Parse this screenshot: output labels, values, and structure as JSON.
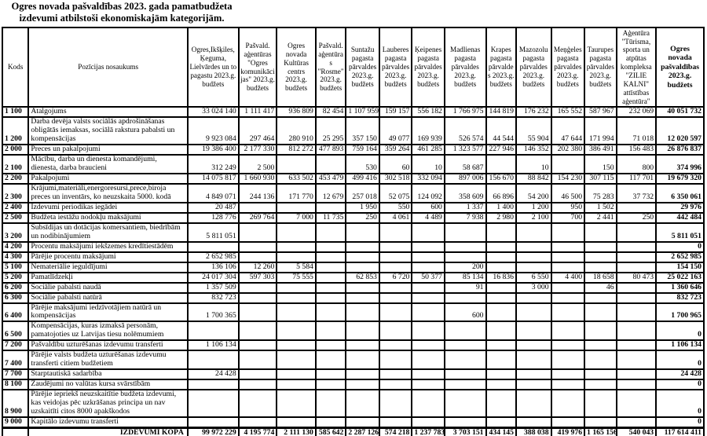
{
  "title": "Ogres novada pašvaldības 2023. gada pamatbudžeta izdevumi atbilstoši ekonomiskajām kategorijām.",
  "table": {
    "columns": [
      "Kods",
      "Pozīcijas nosaukums",
      "Ogres,Ikšķiles, Ķeguma, Lielvārdes un to pagastu 2023.g. budžets",
      "Pašvald. aģentūras \"Ogres komunikācijas\" 2023.g. budžets",
      "Ogres novada Kultūras centrs 2023.g. budžets",
      "Pašvald. aģentūras \"Rosme\" 2023.g. budžets",
      "Suntažu pagasta pārvaldes 2023.g. budžets",
      "Lauberes pagasta pārvaldes 2023.g. budžets",
      "Ķeipenes pagasta pārvaldes 2023.g. budžets",
      "Madlienas pagasta pārvaldes 2023.g. budžets",
      "Krapes pagasta pārvaldes 2023.g. budžets",
      "Mazozolu pagasta pārvaldes 2023.g. budžets",
      "Meņģeles pagasta pārvaldes 2023.g. budžets",
      "Taurupes pagasta pārvaldes 2023.g. budžets",
      "Aģentūra \"Tūrisma, sporta un atpūtas kompleksa \"ZILIE KALNI\" attīstības aģentūra\"",
      "Ogres novada pašvaldības 2023.g. budžets"
    ],
    "rows": [
      {
        "code": "1 100",
        "label": "Atalgojums",
        "values": [
          "33 024 140",
          "1 111 417",
          "936 809",
          "82 454",
          "1 107 959",
          "159 157",
          "556 182",
          "1 766 975",
          "144 819",
          "176 232",
          "165 552",
          "587 967",
          "232 069",
          "40 051 732"
        ]
      },
      {
        "code": "1 200",
        "label": "Darba devēja valsts sociālās apdrošināšanas obligātās iemaksas, sociālā rakstura pabalsti un kompensācijas",
        "values": [
          "9 923 084",
          "297 464",
          "280 910",
          "25 295",
          "357 150",
          "49 077",
          "169 939",
          "526 574",
          "44 544",
          "55 904",
          "47 644",
          "171 994",
          "71 018",
          "12 020 597"
        ]
      },
      {
        "code": "2 000",
        "label": "Preces un pakalpojumi",
        "values": [
          "19 386 400",
          "2 177 330",
          "812 272",
          "477 893",
          "759 164",
          "359 264",
          "461 285",
          "1 323 577",
          "227 946",
          "146 352",
          "202 380",
          "386 491",
          "156 483",
          "26 876 837"
        ]
      },
      {
        "code": "2 100",
        "label": "Mācību, darba un dienesta komandējumi, dienesta, darba braucieni",
        "values": [
          "312 249",
          "2 500",
          "",
          "",
          "530",
          "60",
          "10",
          "58 687",
          "",
          "10",
          "",
          "150",
          "800",
          "374 996"
        ]
      },
      {
        "code": "2 200",
        "label": "Pakalpojumi",
        "values": [
          "14 075 817",
          "1 660 930",
          "633 502",
          "453 479",
          "499 416",
          "302 518",
          "332 094",
          "897 006",
          "156 670",
          "88 842",
          "154 230",
          "307 115",
          "117 701",
          "19 679 320"
        ]
      },
      {
        "code": "2 300",
        "label": "Krājumi,materiāli,energoresursi,prece,biroja preces un inventārs, ko neuzskaita 5000. kodā",
        "values": [
          "4 849 071",
          "244 136",
          "171 770",
          "12 679",
          "257 018",
          "52 075",
          "124 092",
          "358 609",
          "66 896",
          "54 200",
          "46 500",
          "75 283",
          "37 732",
          "6 350 061"
        ]
      },
      {
        "code": "2 400",
        "label": "Izdevumi periodikas iegādei",
        "values": [
          "20 487",
          "",
          "",
          "",
          "1 950",
          "550",
          "600",
          "1 337",
          "1 400",
          "1 200",
          "950",
          "1 502",
          "",
          "29 976"
        ]
      },
      {
        "code": "2 500",
        "label": "Budžeta iestāžu nodokļu maksājumi",
        "values": [
          "128 776",
          "269 764",
          "7 000",
          "11 735",
          "250",
          "4 061",
          "4 489",
          "7 938",
          "2 980",
          "2 100",
          "700",
          "2 441",
          "250",
          "442 484"
        ]
      },
      {
        "code": "3 200",
        "label": "Subsīdijas un dotācijas komersantiem, biedrībām un nodibinājumiem",
        "values": [
          "5 811 051",
          "",
          "",
          "",
          "",
          "",
          "",
          "",
          "",
          "",
          "",
          "",
          "",
          "5 811 051"
        ]
      },
      {
        "code": "4 200",
        "label": "Procentu maksājumi iekšzemes kredītiestādēm",
        "values": [
          "",
          "",
          "",
          "",
          "",
          "",
          "",
          "",
          "",
          "",
          "",
          "",
          "",
          "0"
        ]
      },
      {
        "code": "4 300",
        "label": "Pārējie procentu maksājumi",
        "values": [
          "2 652 985",
          "",
          "",
          "",
          "",
          "",
          "",
          "",
          "",
          "",
          "",
          "",
          "",
          "2 652 985"
        ]
      },
      {
        "code": "5 100",
        "label": "Nemateriālie ieguldījumi",
        "values": [
          "136 106",
          "12 260",
          "5 584",
          "",
          "",
          "",
          "",
          "200",
          "",
          "",
          "",
          "",
          "",
          "154 150"
        ]
      },
      {
        "code": "5 200",
        "label": "Pamatlīdzekļi",
        "values": [
          "24 017 304",
          "597 303",
          "75 555",
          "",
          "62 853",
          "6 720",
          "50 377",
          "85 134",
          "16 836",
          "6 550",
          "4 400",
          "18 658",
          "80 473",
          "25 022 163"
        ]
      },
      {
        "code": "6 200",
        "label": "Sociālie pabalsti naudā",
        "values": [
          "1 357 509",
          "",
          "",
          "",
          "",
          "",
          "",
          "91",
          "",
          "3 000",
          "",
          "46",
          "",
          "1 360 646"
        ]
      },
      {
        "code": "6 300",
        "label": "Sociālie pabalsti natūrā",
        "values": [
          "832 723",
          "",
          "",
          "",
          "",
          "",
          "",
          "",
          "",
          "",
          "",
          "",
          "",
          "832 723"
        ]
      },
      {
        "code": "6 400",
        "label": "Pārējie maksājumi iedzīvotājiem natūrā un kompensācijas",
        "values": [
          "1 700 365",
          "",
          "",
          "",
          "",
          "",
          "",
          "600",
          "",
          "",
          "",
          "",
          "",
          "1 700 965"
        ]
      },
      {
        "code": "6 500",
        "label": "Kompensācijas, kuras izmaksā personām, pamatojoties uz Latvijas tiesu nolēmumiem",
        "values": [
          "",
          "",
          "",
          "",
          "",
          "",
          "",
          "",
          "",
          "",
          "",
          "",
          "",
          "0"
        ]
      },
      {
        "code": "7 200",
        "label": "Pašvaldību uzturēšanas izdevumu transferti",
        "values": [
          "1 106 134",
          "",
          "",
          "",
          "",
          "",
          "",
          "",
          "",
          "",
          "",
          "",
          "",
          "1 106 134"
        ]
      },
      {
        "code": "7 400",
        "label": "Pārējie valsts budžeta uzturēšanas izdevumu transferti citiem budžetiem",
        "values": [
          "",
          "",
          "",
          "",
          "",
          "",
          "",
          "",
          "",
          "",
          "",
          "",
          "",
          "0"
        ]
      },
      {
        "code": "7 700",
        "label": "Starptautiskā sadarbība",
        "values": [
          "24 428",
          "",
          "",
          "",
          "",
          "",
          "",
          "",
          "",
          "",
          "",
          "",
          "",
          "24 428"
        ]
      },
      {
        "code": "8 100",
        "label": "Zaudējumi no valūtas kursa svārstībām",
        "values": [
          "",
          "",
          "",
          "",
          "",
          "",
          "",
          "",
          "",
          "",
          "",
          "",
          "",
          "0"
        ]
      },
      {
        "code": "8 900",
        "label": "Pārējie iepriekš neuzskaitītie budžeta izdevumi, kas veidojas pēc uzkrāšanas principa un nav uzskaitīti citos 8000 apakškodos",
        "values": [
          "",
          "",
          "",
          "",
          "",
          "",
          "",
          "",
          "",
          "",
          "",
          "",
          "",
          "0"
        ]
      },
      {
        "code": "9 000",
        "label": "Kapitālo izdevumu transferti",
        "values": [
          "",
          "",
          "",
          "",
          "",
          "",
          "",
          "",
          "",
          "",
          "",
          "",
          "",
          "0"
        ]
      },
      {
        "code": "",
        "label": "IZDEVUMI KOPĀ",
        "total": true,
        "values": [
          "99 972 229",
          "4 195 774",
          "2 111 130",
          "585 642",
          "2 287 126",
          "574 218",
          "1 237 783",
          "3 703 151",
          "434 145",
          "388 038",
          "419 976",
          "1 165 156",
          "540 043",
          "117 614 411"
        ]
      }
    ]
  }
}
